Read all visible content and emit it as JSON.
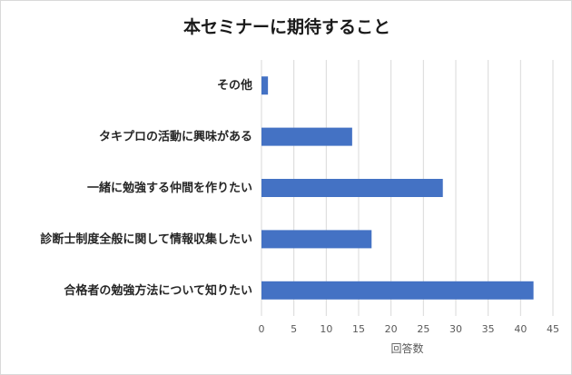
{
  "chart_data": {
    "type": "bar",
    "orientation": "horizontal",
    "title": "本セミナーに期待すること",
    "categories": [
      "その他",
      "タキプロの活動に興味がある",
      "一緒に勉強する仲間を作りたい",
      "診断士制度全般に関して情報収集したい",
      "合格者の勉強方法について知りたい"
    ],
    "values": [
      1,
      14,
      28,
      17,
      42
    ],
    "xlabel": "回答数",
    "ylabel": "",
    "xlim": [
      0,
      45
    ],
    "x_ticks": [
      0,
      5,
      10,
      15,
      20,
      25,
      30,
      35,
      40,
      45
    ],
    "grid": true,
    "legend": "none",
    "bar_color": "#4472c4",
    "grid_color": "#d9d9d9"
  }
}
